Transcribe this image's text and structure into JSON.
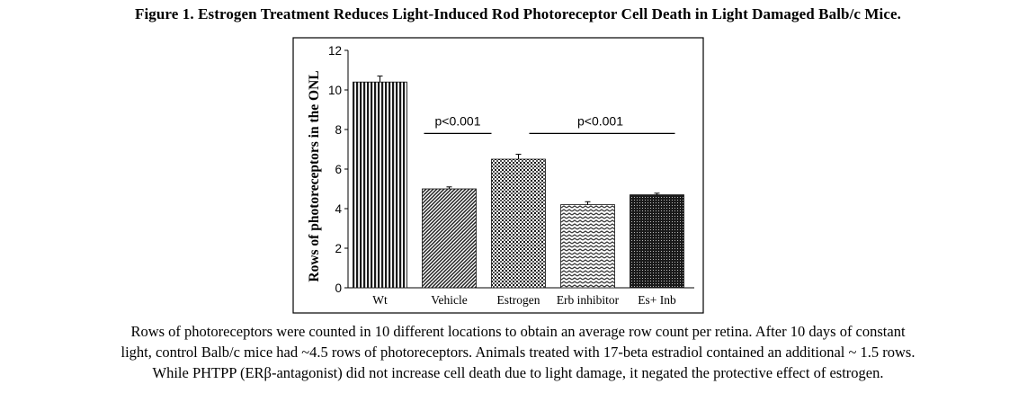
{
  "figure": {
    "title": "Figure 1. Estrogen Treatment Reduces Light-Induced Rod Photoreceptor Cell Death in Light Damaged Balb/c Mice.",
    "caption_lines": [
      "Rows of photoreceptors were counted in 10 different locations to obtain an average row count per retina. After 10 days of constant",
      "light, control Balb/c mice had ~4.5 rows of photoreceptors. Animals treated with 17-beta estradiol contained an additional ~ 1.5 rows.",
      "While PHTPP (ERβ-antagonist) did not increase cell death due to light damage, it negated the protective effect of estrogen."
    ]
  },
  "chart_data": {
    "type": "bar",
    "title": "",
    "xlabel": "",
    "ylabel": "Rows of photoreceptors in the ONL",
    "ylim": [
      0,
      12
    ],
    "yticks": [
      0,
      2,
      4,
      6,
      8,
      10,
      12
    ],
    "categories": [
      "Wt",
      "Vehicle",
      "Estrogen",
      "Erb inhibitor",
      "Es+ Inb"
    ],
    "values": [
      10.4,
      5.0,
      6.5,
      4.2,
      4.7
    ],
    "errors": [
      0.3,
      0.1,
      0.25,
      0.15,
      0.08
    ],
    "annotations": [
      {
        "text": "p<0.001",
        "from": "Vehicle",
        "to": "Estrogen"
      },
      {
        "text": "p<0.001",
        "from": "Estrogen",
        "to": "Es+ Inb"
      }
    ],
    "grid": false,
    "legend": "none"
  }
}
